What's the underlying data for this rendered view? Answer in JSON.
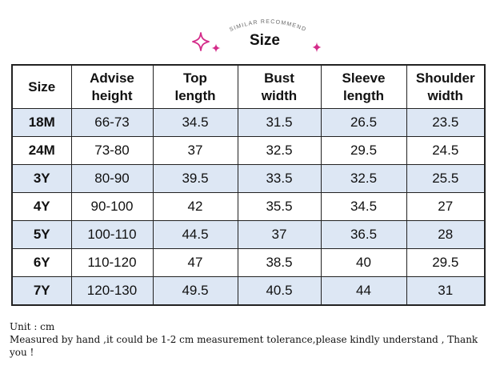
{
  "header": {
    "arc_text": "SIMILAR RECOMMEND",
    "title": "Size",
    "sparkle_color": "#d42c8a"
  },
  "table": {
    "columns": [
      {
        "line1": "Size",
        "line2": ""
      },
      {
        "line1": "Advise",
        "line2": "height"
      },
      {
        "line1": "Top",
        "line2": "length"
      },
      {
        "line1": "Bust",
        "line2": "width"
      },
      {
        "line1": "Sleeve",
        "line2": "length"
      },
      {
        "line1": "Shoulder",
        "line2": "width"
      }
    ],
    "rows": [
      {
        "size": "18M",
        "height": "66-73",
        "top_length": "34.5",
        "bust_width": "31.5",
        "sleeve_length": "26.5",
        "shoulder_width": "23.5"
      },
      {
        "size": "24M",
        "height": "73-80",
        "top_length": "37",
        "bust_width": "32.5",
        "sleeve_length": "29.5",
        "shoulder_width": "24.5"
      },
      {
        "size": "3Y",
        "height": "80-90",
        "top_length": "39.5",
        "bust_width": "33.5",
        "sleeve_length": "32.5",
        "shoulder_width": "25.5"
      },
      {
        "size": "4Y",
        "height": "90-100",
        "top_length": "42",
        "bust_width": "35.5",
        "sleeve_length": "34.5",
        "shoulder_width": "27"
      },
      {
        "size": "5Y",
        "height": "100-110",
        "top_length": "44.5",
        "bust_width": "37",
        "sleeve_length": "36.5",
        "shoulder_width": "28"
      },
      {
        "size": "6Y",
        "height": "110-120",
        "top_length": "47",
        "bust_width": "38.5",
        "sleeve_length": "40",
        "shoulder_width": "29.5"
      },
      {
        "size": "7Y",
        "height": "120-130",
        "top_length": "49.5",
        "bust_width": "40.5",
        "sleeve_length": "44",
        "shoulder_width": "31"
      }
    ],
    "row_alt_color": "#dde7f4"
  },
  "notes": {
    "unit": "Unit : cm",
    "tolerance": "Measured by hand ,it could be 1-2 cm measurement tolerance,please kindly understand , Thank you !"
  }
}
